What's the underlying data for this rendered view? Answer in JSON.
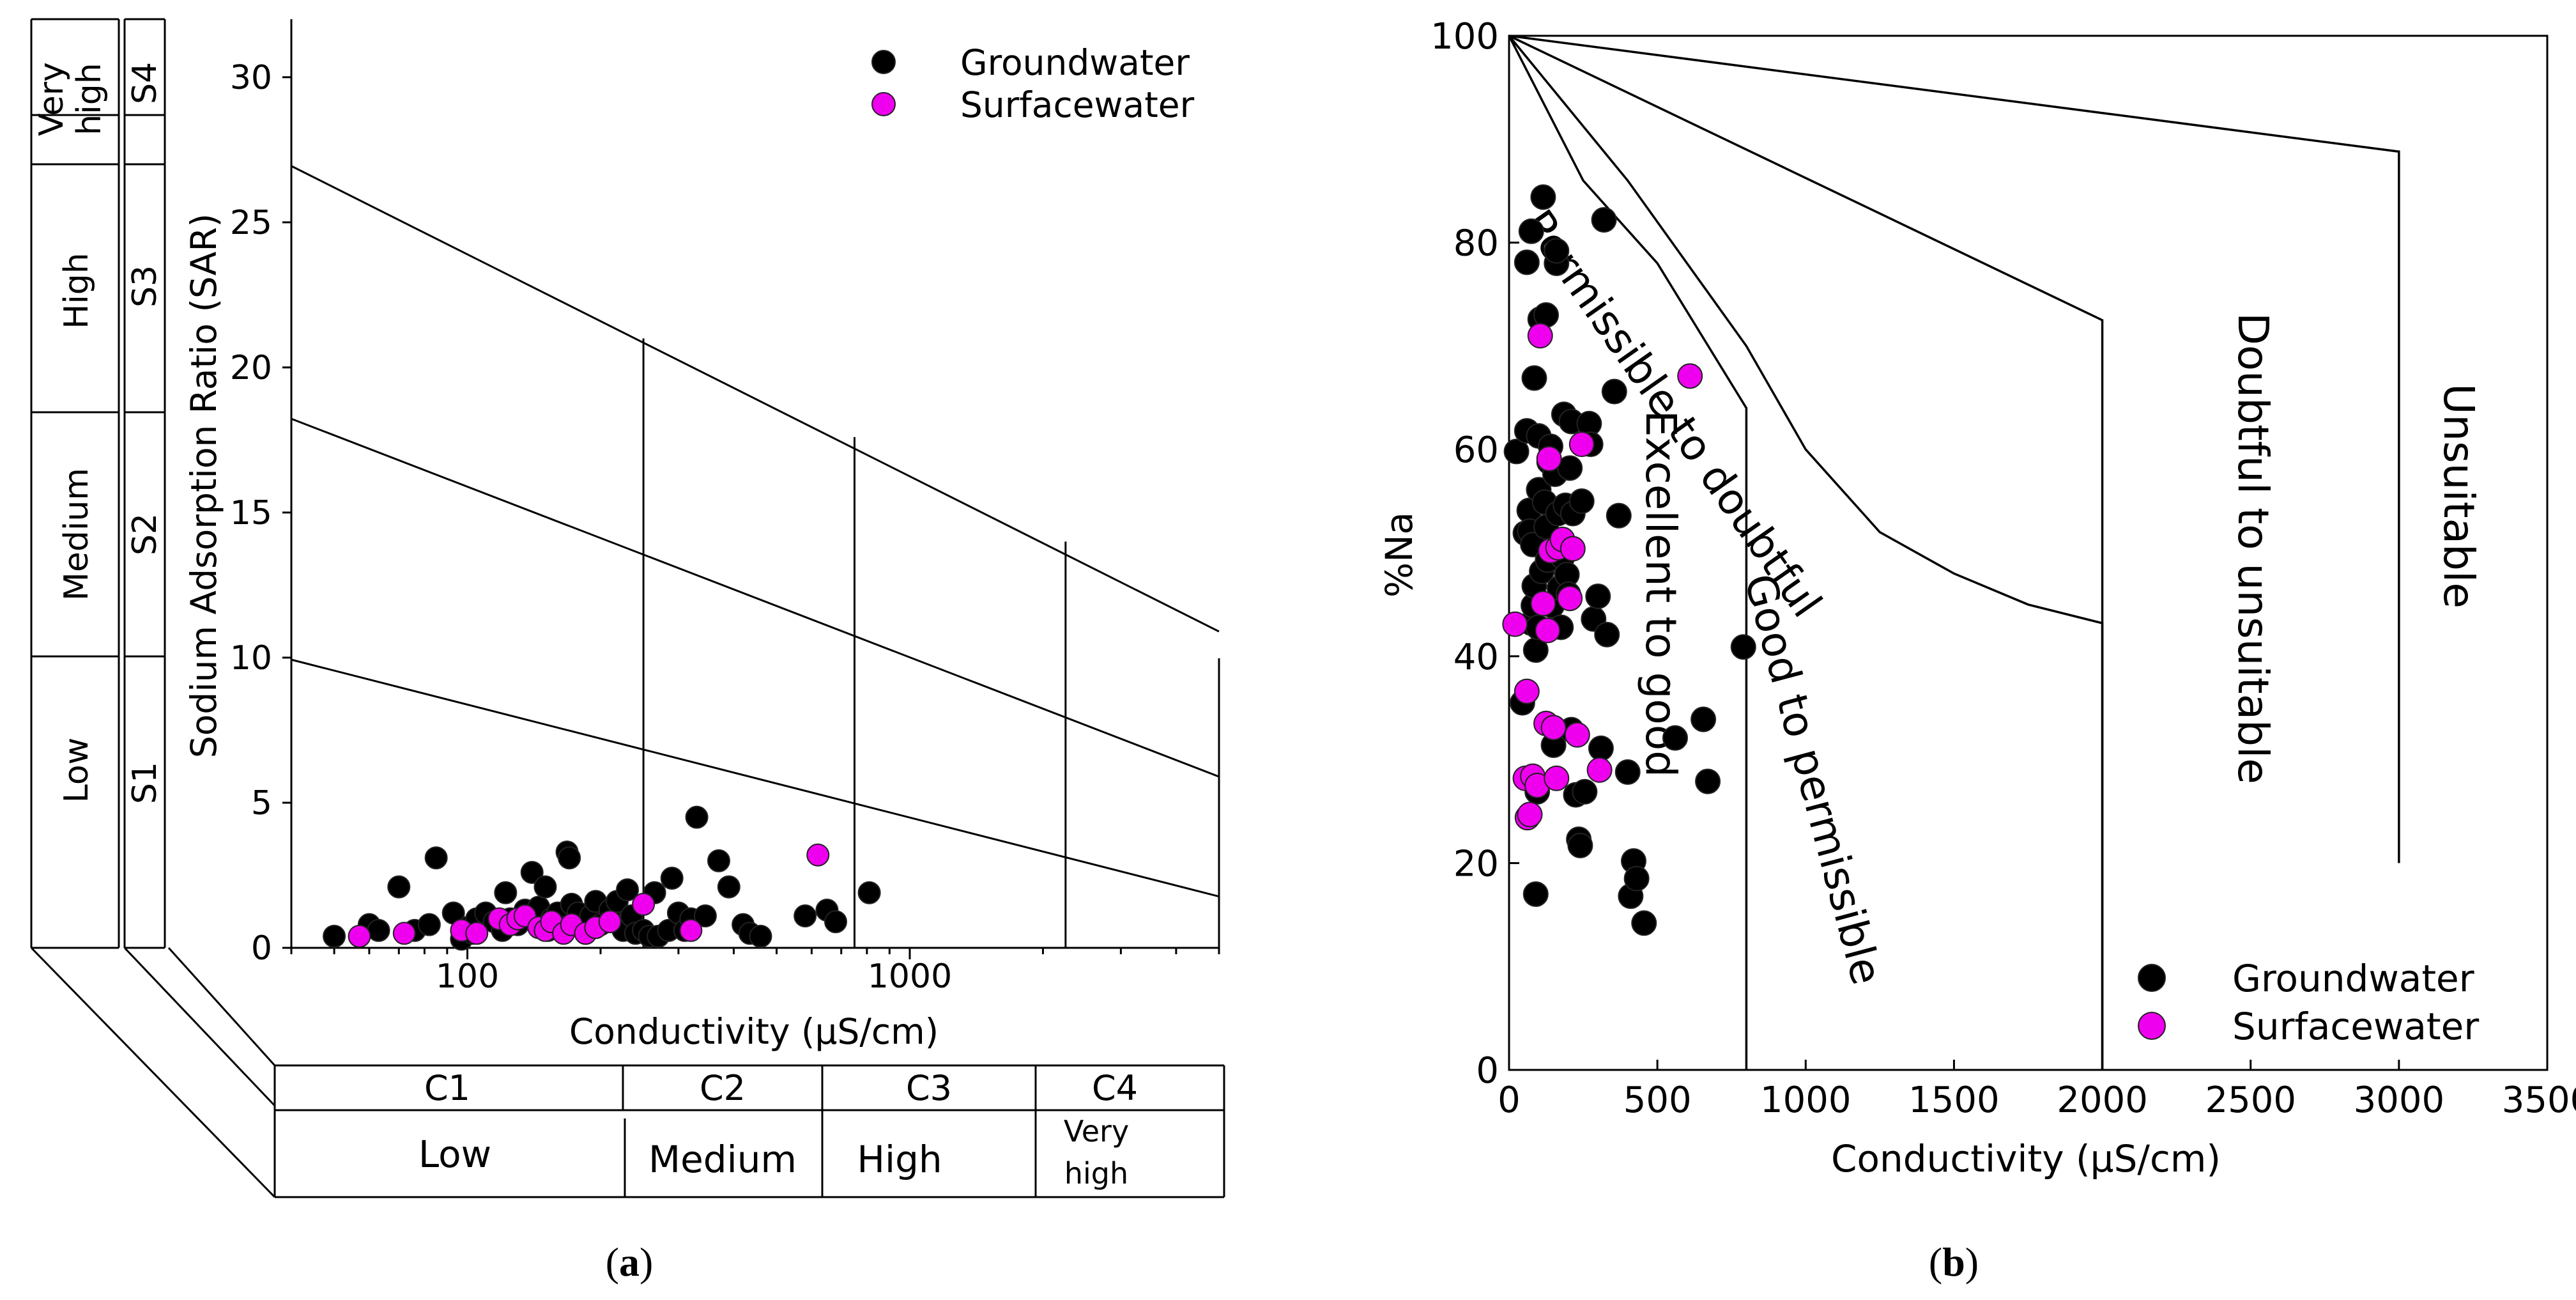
{
  "figure": {
    "caption_a": [
      "(",
      "a",
      ")"
    ],
    "caption_b": [
      "(",
      "b",
      ")"
    ],
    "legend": [
      "Groundwater",
      "Surfacewater"
    ]
  },
  "colors": {
    "groundwater": "#000000",
    "surfacewater": "#ee00ee",
    "point_stroke": "#222222"
  },
  "chart_data": [
    {
      "type": "scatter",
      "title": "",
      "xlabel": "Conductivity (μS/cm)",
      "ylabel": "Sodium Adsorption Ratio (SAR)",
      "xscale": "log",
      "xlim": [
        40,
        5000
      ],
      "ylim": [
        0,
        32
      ],
      "xticks": [
        100,
        1000
      ],
      "xtick_labels": [
        "100",
        "1000"
      ],
      "yticks": [
        0,
        5,
        10,
        15,
        20,
        25,
        30
      ],
      "legend_position": "top-right",
      "legend": [
        "Groundwater",
        "Surfacewater"
      ],
      "sar_class_lines": [
        {
          "x": [
            40,
            5000
          ],
          "y": [
            26.94,
            10.9
          ]
        },
        {
          "x": [
            40,
            5000
          ],
          "y": [
            18.23,
            5.9
          ]
        },
        {
          "x": [
            40,
            5000
          ],
          "y": [
            9.93,
            1.77
          ]
        }
      ],
      "salinity_boundaries": [
        {
          "x": 250,
          "y_top": 21.0
        },
        {
          "x": 750,
          "y_top": 17.6
        },
        {
          "x": 2250,
          "y_top": 14.0
        }
      ],
      "salinity_classes": [
        {
          "code": "C1",
          "label": "Low"
        },
        {
          "code": "C2",
          "label": "Medium"
        },
        {
          "code": "C3",
          "label": "High"
        },
        {
          "code": "C4",
          "label": "Very high"
        }
      ],
      "sodium_classes": [
        {
          "code": "S1",
          "label": "Low"
        },
        {
          "code": "S2",
          "label": "Medium"
        },
        {
          "code": "S3",
          "label": "High"
        },
        {
          "code": "S4",
          "label": "Very high"
        }
      ],
      "series": [
        {
          "name": "Groundwater",
          "points": [
            [
              50,
              0.4
            ],
            [
              60,
              0.8
            ],
            [
              63,
              0.6
            ],
            [
              70,
              2.1
            ],
            [
              76,
              0.6
            ],
            [
              82,
              0.8
            ],
            [
              85,
              3.1
            ],
            [
              93,
              1.2
            ],
            [
              97,
              0.3
            ],
            [
              100,
              0.7
            ],
            [
              103,
              0.5
            ],
            [
              105,
              1.0
            ],
            [
              110,
              1.2
            ],
            [
              115,
              0.9
            ],
            [
              120,
              0.6
            ],
            [
              122,
              1.9
            ],
            [
              125,
              1.0
            ],
            [
              130,
              0.8
            ],
            [
              135,
              1.3
            ],
            [
              140,
              2.6
            ],
            [
              145,
              1.4
            ],
            [
              150,
              2.1
            ],
            [
              152,
              0.6
            ],
            [
              155,
              1.0
            ],
            [
              160,
              1.2
            ],
            [
              165,
              0.7
            ],
            [
              168,
              3.3
            ],
            [
              170,
              3.1
            ],
            [
              172,
              1.5
            ],
            [
              175,
              0.9
            ],
            [
              178,
              1.2
            ],
            [
              185,
              0.5
            ],
            [
              190,
              1.1
            ],
            [
              195,
              1.6
            ],
            [
              200,
              0.8
            ],
            [
              210,
              1.3
            ],
            [
              218,
              1.6
            ],
            [
              225,
              0.6
            ],
            [
              230,
              2.0
            ],
            [
              235,
              1.1
            ],
            [
              240,
              0.5
            ],
            [
              250,
              0.6
            ],
            [
              258,
              0.4
            ],
            [
              265,
              1.9
            ],
            [
              270,
              0.4
            ],
            [
              285,
              0.6
            ],
            [
              290,
              2.4
            ],
            [
              300,
              1.2
            ],
            [
              310,
              0.6
            ],
            [
              320,
              1.0
            ],
            [
              330,
              4.5
            ],
            [
              345,
              1.1
            ],
            [
              370,
              3.0
            ],
            [
              390,
              2.1
            ],
            [
              420,
              0.8
            ],
            [
              435,
              0.5
            ],
            [
              460,
              0.4
            ],
            [
              580,
              1.1
            ],
            [
              650,
              1.3
            ],
            [
              680,
              0.9
            ],
            [
              810,
              1.9
            ]
          ]
        },
        {
          "name": "Surfacewater",
          "points": [
            [
              57,
              0.4
            ],
            [
              72,
              0.5
            ],
            [
              97,
              0.6
            ],
            [
              105,
              0.5
            ],
            [
              118,
              1.0
            ],
            [
              125,
              0.8
            ],
            [
              130,
              1.0
            ],
            [
              135,
              1.1
            ],
            [
              145,
              0.7
            ],
            [
              150,
              0.6
            ],
            [
              155,
              0.9
            ],
            [
              165,
              0.5
            ],
            [
              172,
              0.8
            ],
            [
              185,
              0.5
            ],
            [
              195,
              0.7
            ],
            [
              210,
              0.9
            ],
            [
              250,
              1.5
            ],
            [
              320,
              0.6
            ],
            [
              620,
              3.2
            ]
          ]
        }
      ]
    },
    {
      "type": "scatter",
      "title": "",
      "xlabel": "Conductivity (μS/cm)",
      "ylabel": "%Na",
      "xlim": [
        0,
        3500
      ],
      "ylim": [
        0,
        100
      ],
      "xticks": [
        0,
        500,
        1000,
        1500,
        2000,
        2500,
        3000,
        3500
      ],
      "yticks": [
        0,
        20,
        40,
        60,
        80,
        100
      ],
      "legend_position": "bottom-right",
      "legend": [
        "Groundwater",
        "Surfacewater"
      ],
      "class_labels": [
        "Excellent to good",
        "Good to permissible",
        "Permissible to doubtful",
        "Doubtful to unsuitable",
        "Unsuitable"
      ],
      "class_curves": [
        {
          "x": [
            0,
            250,
            500,
            800,
            800
          ],
          "y": [
            100,
            86,
            78,
            64,
            0
          ]
        },
        {
          "x": [
            0,
            400,
            800,
            1000,
            1250,
            1500,
            1750,
            2000,
            2000
          ],
          "y": [
            100,
            86,
            70,
            60,
            52,
            48,
            45,
            43.2,
            0
          ]
        },
        {
          "x": [
            0,
            2000,
            2000
          ],
          "y": [
            100,
            72.5,
            0
          ]
        },
        {
          "x": [
            0,
            3000,
            3000
          ],
          "y": [
            100,
            88.8,
            20
          ]
        }
      ],
      "series": [
        {
          "name": "Groundwater",
          "points": [
            [
              25,
              59.8
            ],
            [
              45,
              35.5
            ],
            [
              55,
              51.9
            ],
            [
              60,
              61.8
            ],
            [
              60,
              78.1
            ],
            [
              68,
              54.1
            ],
            [
              70,
              52.1
            ],
            [
              75,
              43.2
            ],
            [
              75,
              81.1
            ],
            [
              80,
              50.8
            ],
            [
              82,
              44.9
            ],
            [
              85,
              46.8
            ],
            [
              85,
              66.9
            ],
            [
              90,
              40.6
            ],
            [
              90,
              17.0
            ],
            [
              95,
              26.9
            ],
            [
              98,
              42.8
            ],
            [
              100,
              56.1
            ],
            [
              100,
              61.3
            ],
            [
              105,
              72.6
            ],
            [
              110,
              48.2
            ],
            [
              115,
              84.4
            ],
            [
              120,
              54.9
            ],
            [
              125,
              73.0
            ],
            [
              125,
              52.5
            ],
            [
              130,
              49.3
            ],
            [
              135,
              58.8
            ],
            [
              140,
              60.3
            ],
            [
              145,
              44.9
            ],
            [
              150,
              31.4
            ],
            [
              155,
              57.6
            ],
            [
              160,
              78.0
            ],
            [
              160,
              79.2
            ],
            [
              165,
              53.8
            ],
            [
              170,
              46.6
            ],
            [
              175,
              42.8
            ],
            [
              180,
              49.6
            ],
            [
              185,
              63.4
            ],
            [
              190,
              54.6
            ],
            [
              195,
              47.9
            ],
            [
              200,
              46.0
            ],
            [
              205,
              58.2
            ],
            [
              210,
              32.9
            ],
            [
              210,
              62.7
            ],
            [
              215,
              53.8
            ],
            [
              225,
              26.6
            ],
            [
              235,
              22.3
            ],
            [
              240,
              21.7
            ],
            [
              245,
              55.0
            ],
            [
              255,
              26.9
            ],
            [
              270,
              62.5
            ],
            [
              275,
              60.5
            ],
            [
              285,
              43.6
            ],
            [
              300,
              45.8
            ],
            [
              310,
              31.1
            ],
            [
              320,
              82.2
            ],
            [
              330,
              42.1
            ],
            [
              355,
              65.6
            ],
            [
              370,
              53.6
            ],
            [
              400,
              28.8
            ],
            [
              410,
              16.8
            ],
            [
              420,
              20.2
            ],
            [
              430,
              18.5
            ],
            [
              455,
              14.2
            ],
            [
              560,
              32.1
            ],
            [
              655,
              33.9
            ],
            [
              670,
              27.9
            ],
            [
              790,
              40.9
            ]
          ]
        },
        {
          "name": "Surfacewater",
          "points": [
            [
              20,
              43.1
            ],
            [
              55,
              28.2
            ],
            [
              60,
              36.6
            ],
            [
              62,
              24.4
            ],
            [
              70,
              24.7
            ],
            [
              80,
              28.4
            ],
            [
              95,
              27.5
            ],
            [
              105,
              71.0
            ],
            [
              115,
              45.1
            ],
            [
              125,
              33.5
            ],
            [
              130,
              42.5
            ],
            [
              135,
              59.1
            ],
            [
              140,
              50.2
            ],
            [
              150,
              33.1
            ],
            [
              160,
              28.2
            ],
            [
              165,
              50.5
            ],
            [
              180,
              51.3
            ],
            [
              205,
              45.6
            ],
            [
              215,
              50.4
            ],
            [
              230,
              32.4
            ],
            [
              245,
              60.5
            ],
            [
              305,
              29.0
            ],
            [
              610,
              67.1
            ]
          ]
        }
      ]
    }
  ]
}
